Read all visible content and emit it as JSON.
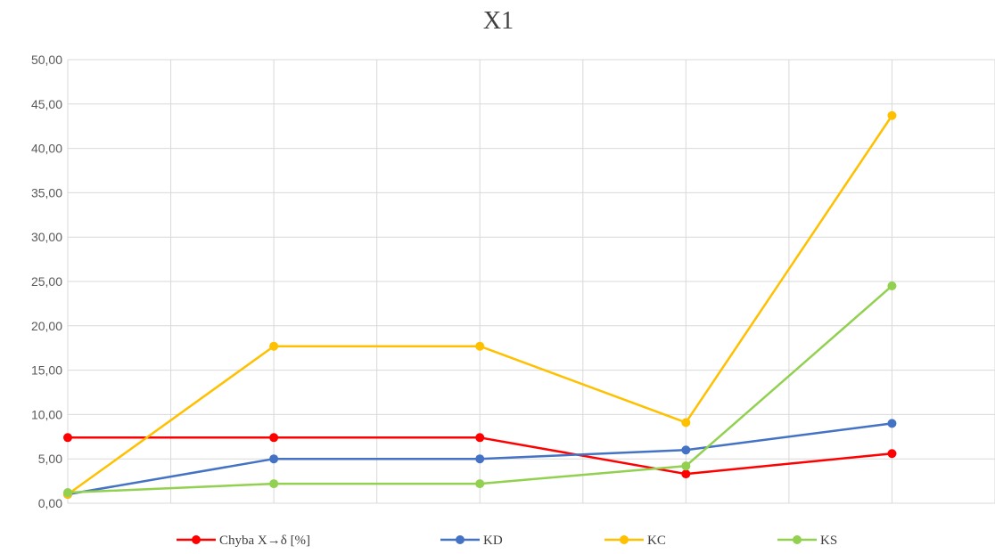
{
  "chart_data": {
    "type": "line",
    "title": "X1",
    "xlabel": "",
    "ylabel": "",
    "ylim": [
      0,
      50
    ],
    "y_ticks": [
      "0,00",
      "5,00",
      "10,00",
      "15,00",
      "20,00",
      "25,00",
      "30,00",
      "35,00",
      "40,00",
      "45,00",
      "50,00"
    ],
    "categories": [
      "",
      "",
      "",
      "",
      ""
    ],
    "grid": true,
    "legend_position": "bottom",
    "series": [
      {
        "name": "Chyba X→δ [%]",
        "color": "#ff0000",
        "values": [
          7.4,
          7.4,
          7.4,
          3.3,
          5.6
        ]
      },
      {
        "name": "KD",
        "color": "#4472c4",
        "values": [
          1.0,
          5.0,
          5.0,
          6.0,
          9.0
        ]
      },
      {
        "name": "KC",
        "color": "#ffc000",
        "values": [
          1.0,
          17.7,
          17.7,
          9.1,
          43.7
        ]
      },
      {
        "name": "KS",
        "color": "#92d050",
        "values": [
          1.2,
          2.2,
          2.2,
          4.2,
          24.5
        ]
      }
    ]
  }
}
